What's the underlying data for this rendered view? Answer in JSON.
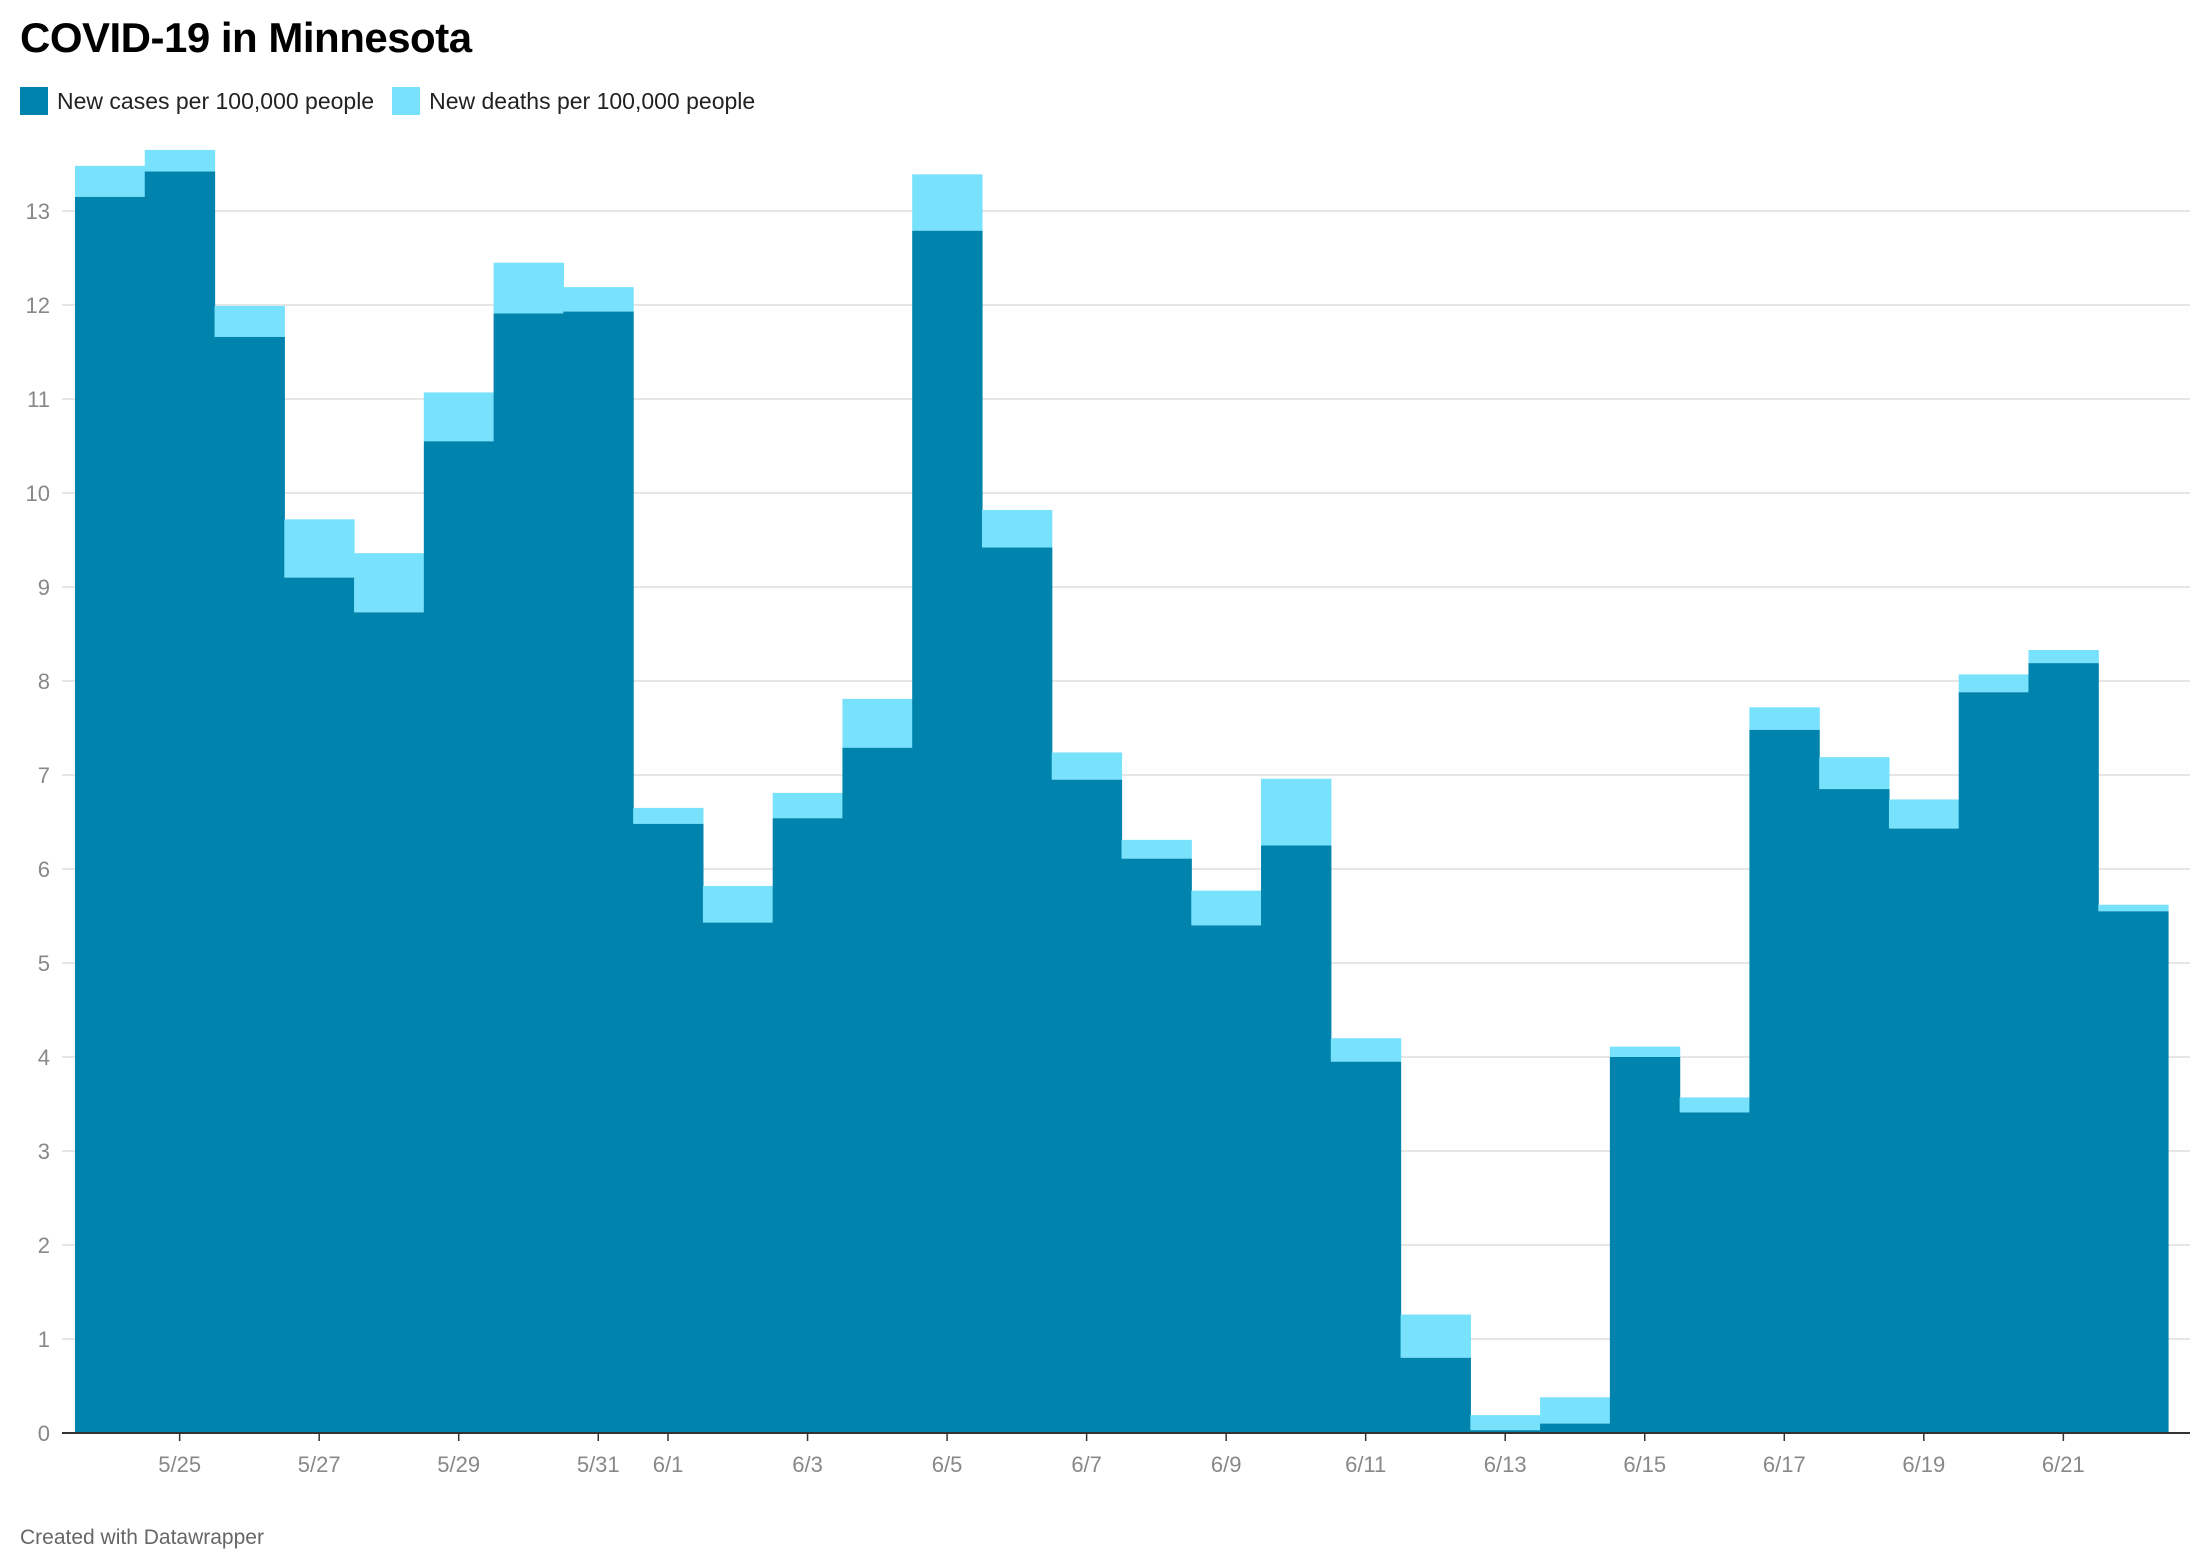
{
  "header": {
    "title": "COVID-19 in Minnesota"
  },
  "legend": [
    {
      "label": "New cases per 100,000 people",
      "color": "#0083ad"
    },
    {
      "label": "New deaths per 100,000 people",
      "color": "#78e1fb"
    }
  ],
  "footer": {
    "text": "Created with Datawrapper"
  },
  "chart_data": {
    "type": "area",
    "stacked": true,
    "step": true,
    "title": "COVID-19 in Minnesota",
    "xlabel": "",
    "ylabel": "",
    "ylim": [
      0,
      13.5
    ],
    "yticks": [
      0,
      1,
      2,
      3,
      4,
      5,
      6,
      7,
      8,
      9,
      10,
      11,
      12,
      13
    ],
    "grid": true,
    "legend_position": "top-left",
    "x": [
      "5/24",
      "5/25",
      "5/26",
      "5/27",
      "5/28",
      "5/29",
      "5/30",
      "5/31",
      "6/1",
      "6/2",
      "6/3",
      "6/4",
      "6/5",
      "6/6",
      "6/7",
      "6/8",
      "6/9",
      "6/10",
      "6/11",
      "6/12",
      "6/13",
      "6/14",
      "6/15",
      "6/16",
      "6/17",
      "6/18",
      "6/19",
      "6/20",
      "6/21",
      "6/22"
    ],
    "xtick_labels": [
      "5/25",
      "5/27",
      "5/29",
      "5/31",
      "6/1",
      "6/3",
      "6/5",
      "6/7",
      "6/9",
      "6/11",
      "6/13",
      "6/15",
      "6/17",
      "6/19",
      "6/21"
    ],
    "series": [
      {
        "name": "New cases per 100,000 people",
        "color": "#0083ad",
        "values": [
          13.15,
          13.42,
          11.66,
          9.1,
          8.73,
          10.55,
          11.91,
          11.93,
          6.48,
          5.43,
          6.54,
          7.29,
          12.79,
          9.42,
          6.95,
          6.11,
          5.4,
          6.25,
          3.95,
          0.8,
          0.03,
          0.1,
          4.0,
          3.41,
          7.48,
          6.85,
          6.43,
          7.88,
          8.19,
          5.55
        ]
      },
      {
        "name": "New deaths per 100,000 people",
        "color": "#78e1fb",
        "values": [
          0.33,
          0.23,
          0.33,
          0.62,
          0.63,
          0.52,
          0.54,
          0.26,
          0.17,
          0.39,
          0.27,
          0.52,
          0.6,
          0.4,
          0.29,
          0.2,
          0.37,
          0.71,
          0.25,
          0.46,
          0.16,
          0.28,
          0.11,
          0.16,
          0.24,
          0.34,
          0.31,
          0.19,
          0.14,
          0.07
        ]
      }
    ]
  }
}
